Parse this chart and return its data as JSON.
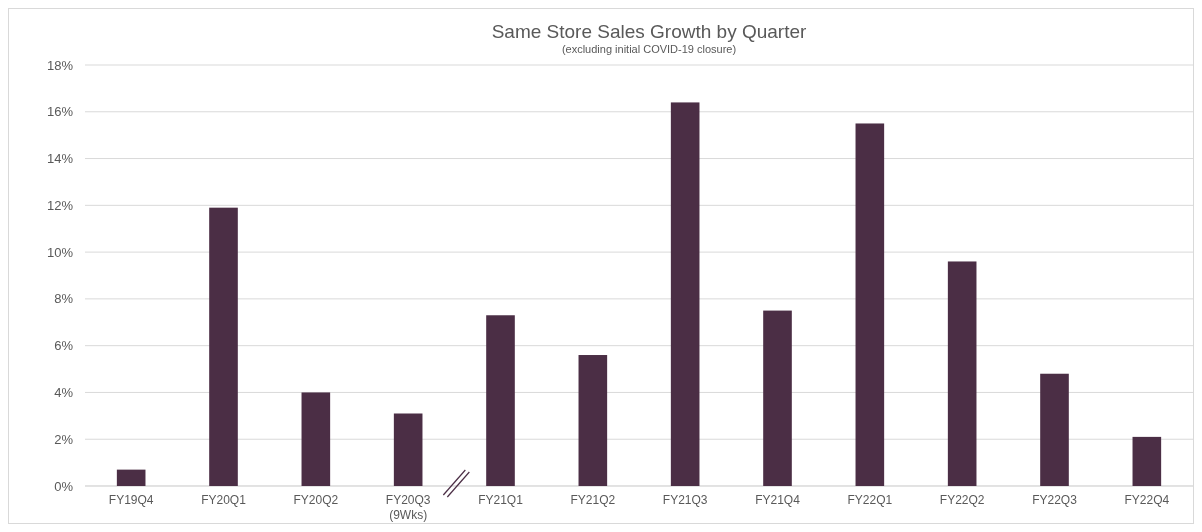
{
  "chart_data": {
    "type": "bar",
    "title": "Same Store Sales Growth by Quarter",
    "subtitle": "(excluding initial COVID-19 closure)",
    "categories": [
      "FY19Q4",
      "FY20Q1",
      "FY20Q2",
      "FY20Q3\n(9Wks)",
      "FY21Q1",
      "FY21Q2",
      "FY21Q3",
      "FY21Q4",
      "FY22Q1",
      "FY22Q2",
      "FY22Q3",
      "FY22Q4"
    ],
    "values": [
      0.7,
      11.9,
      4.0,
      3.1,
      7.3,
      5.6,
      16.4,
      7.5,
      15.5,
      9.6,
      4.8,
      2.1
    ],
    "color": "#4b2e45",
    "ylim": [
      0,
      18
    ],
    "yticks": [
      {
        "value": 0,
        "label": "0%"
      },
      {
        "value": 2,
        "label": "2%"
      },
      {
        "value": 4,
        "label": "4%"
      },
      {
        "value": 6,
        "label": "6%"
      },
      {
        "value": 8,
        "label": "8%"
      },
      {
        "value": 10,
        "label": "10%"
      },
      {
        "value": 12,
        "label": "12%"
      },
      {
        "value": 14,
        "label": "14%"
      },
      {
        "value": 16,
        "label": "16%"
      },
      {
        "value": 18,
        "label": "18%"
      }
    ],
    "grid": "y"
  }
}
